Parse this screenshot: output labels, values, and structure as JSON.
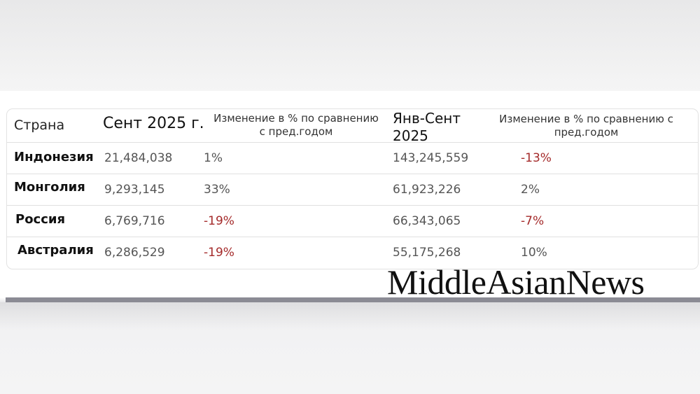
{
  "table": {
    "headers": {
      "country": "Страна",
      "sept": "Сент 2025 г.",
      "sept_change_line1": "Изменение в % по сравнению",
      "sept_change_line2": "с пред.годом",
      "jan_sept_line1": "Янв-Сент",
      "jan_sept_line2": "2025",
      "jan_sept_change_line1": "Изменение в % по сравнению с",
      "jan_sept_change_line2": "пред.годом"
    },
    "rows": [
      {
        "country": "Индонезия",
        "sept": "21,484,038",
        "sept_change": "1%",
        "jan_sept": "143,245,559",
        "jan_sept_change": "-13%"
      },
      {
        "country": "Монголия",
        "sept": "9,293,145",
        "sept_change": "33%",
        "jan_sept": "61,923,226",
        "jan_sept_change": "2%"
      },
      {
        "country": "Россия",
        "sept": "6,769,716",
        "sept_change": "-19%",
        "jan_sept": "66,343,065",
        "jan_sept_change": "-7%"
      },
      {
        "country": "Австралия",
        "sept": "6,286,529",
        "sept_change": "-19%",
        "jan_sept": "55,175,268",
        "jan_sept_change": "10%"
      }
    ]
  },
  "colors": {
    "negative": "#a42a2a",
    "text": "#555555"
  },
  "watermark": "MiddleAsianNews"
}
